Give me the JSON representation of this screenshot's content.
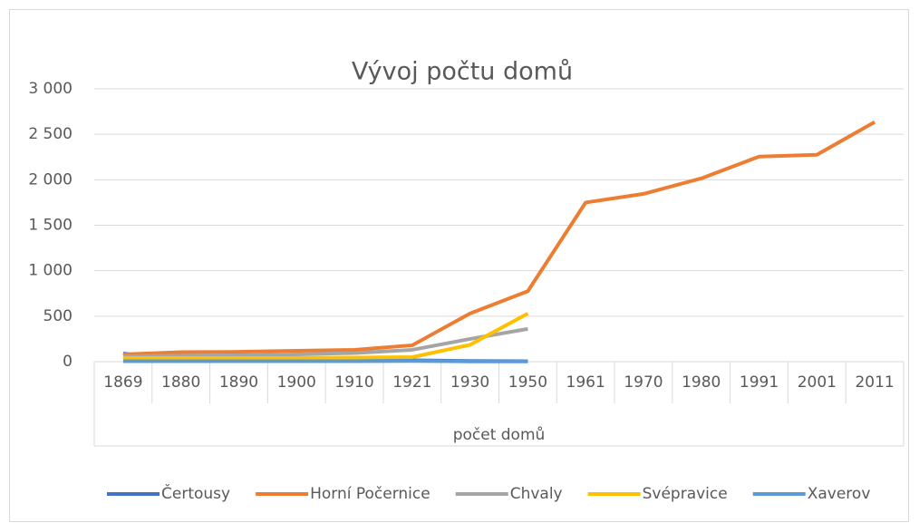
{
  "chart_data": {
    "type": "line",
    "title": "Vývoj počtu domů",
    "categories": [
      "1869",
      "1880",
      "1890",
      "1900",
      "1910",
      "1921",
      "1930",
      "1950",
      "1961",
      "1970",
      "1980",
      "1991",
      "2001",
      "2011"
    ],
    "xlabel": "počet domů",
    "series": [
      {
        "name": "Čertousy",
        "color": "#4472c4",
        "values": [
          90,
          15,
          15,
          15,
          15,
          15,
          8,
          5,
          null,
          null,
          null,
          null,
          null,
          null
        ]
      },
      {
        "name": "Horní Počernice",
        "color": "#ed7d31",
        "values": [
          80,
          105,
          108,
          120,
          130,
          180,
          530,
          775,
          1750,
          1845,
          2015,
          2255,
          2275,
          2635
        ]
      },
      {
        "name": "Chvaly",
        "color": "#a5a5a5",
        "values": [
          60,
          65,
          70,
          80,
          95,
          130,
          250,
          360,
          null,
          null,
          null,
          null,
          null,
          null
        ]
      },
      {
        "name": "Svépravice",
        "color": "#ffc000",
        "values": [
          40,
          40,
          40,
          40,
          45,
          50,
          185,
          530,
          null,
          null,
          null,
          null,
          null,
          null
        ]
      },
      {
        "name": "Xaverov",
        "color": "#5b9bd5",
        "values": [
          5,
          5,
          5,
          5,
          5,
          8,
          3,
          2,
          null,
          null,
          null,
          null,
          null,
          null
        ]
      }
    ],
    "ylim": [
      0,
      3000
    ],
    "yticks": [
      0,
      500,
      {
        "value": 1000,
        "label": "1 000"
      },
      {
        "value": 1500,
        "label": "1 500"
      },
      {
        "value": 2000,
        "label": "2 000"
      },
      {
        "value": 2500,
        "label": "2 500"
      },
      {
        "value": 3000,
        "label": "3 000"
      }
    ],
    "grid": true,
    "legend": "bottom"
  }
}
